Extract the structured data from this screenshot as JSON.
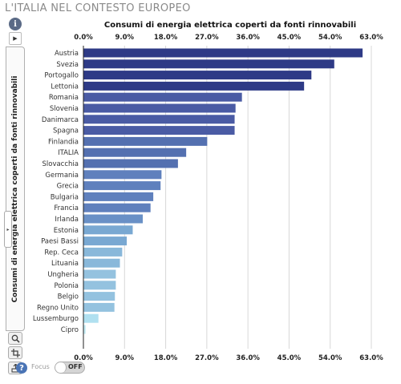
{
  "header": {
    "title": "L'ITALIA NEL CONTESTO EUROPEO"
  },
  "side_panel": {
    "info_label": "i",
    "menu_label": "▶",
    "tab_label": "Consumi di energia elettrica coperti da fonti rinnovabili",
    "handle_label": "▸",
    "help_label": "?",
    "focus_label": "Focus",
    "focus_state": "OFF"
  },
  "icons": {
    "info": "info-icon",
    "menu": "menu-arrow-icon",
    "zoom": "magnifier-icon",
    "crop": "crop-icon",
    "export": "export-icon",
    "help": "help-icon"
  },
  "chart_data": {
    "type": "bar",
    "orientation": "horizontal",
    "title": "Consumi di energia elettrica coperti da fonti rinnovabili",
    "xlabel": "",
    "ylabel": "",
    "xlim": [
      0,
      63
    ],
    "ticks": [
      "0.0%",
      "9.0%",
      "18.0%",
      "27.0%",
      "36.0%",
      "45.0%",
      "54.0%",
      "63.0%"
    ],
    "tick_values": [
      0,
      9,
      18,
      27,
      36,
      45,
      54,
      63
    ],
    "grid": true,
    "categories": [
      "Austria",
      "Svezia",
      "Portogallo",
      "Lettonia",
      "Romania",
      "Slovenia",
      "Danimarca",
      "Spagna",
      "Finlandia",
      "ITALIA",
      "Slovacchia",
      "Germania",
      "Grecia",
      "Bulgaria",
      "Francia",
      "Irlanda",
      "Estonia",
      "Paesi Bassi",
      "Rep. Ceca",
      "Lituania",
      "Ungheria",
      "Polonia",
      "Belgio",
      "Regno Unito",
      "Lussemburgo",
      "Cipro"
    ],
    "values": [
      61.0,
      54.8,
      49.8,
      48.2,
      34.6,
      33.2,
      33.0,
      33.0,
      27.0,
      22.4,
      20.6,
      17.0,
      16.8,
      15.2,
      14.6,
      12.9,
      10.7,
      9.4,
      8.4,
      7.9,
      7.0,
      7.0,
      6.8,
      6.7,
      3.2,
      0.4
    ],
    "colors": [
      "#2e3a86",
      "#2e3a86",
      "#2e3a86",
      "#2e3a86",
      "#4a5ba4",
      "#4a5ba4",
      "#4a5ba4",
      "#4a5ba4",
      "#5470b0",
      "#5470b0",
      "#5470b0",
      "#5f80bd",
      "#5f80bd",
      "#5f80bd",
      "#5f80bd",
      "#6990c6",
      "#79a8d2",
      "#79a8d2",
      "#89b8da",
      "#89b8da",
      "#94c2df",
      "#94c2df",
      "#94c2df",
      "#94c2df",
      "#b0e0f0",
      "#c4ebf4"
    ],
    "grid_color": "#d8d8d8",
    "axis_color": "#222222"
  }
}
